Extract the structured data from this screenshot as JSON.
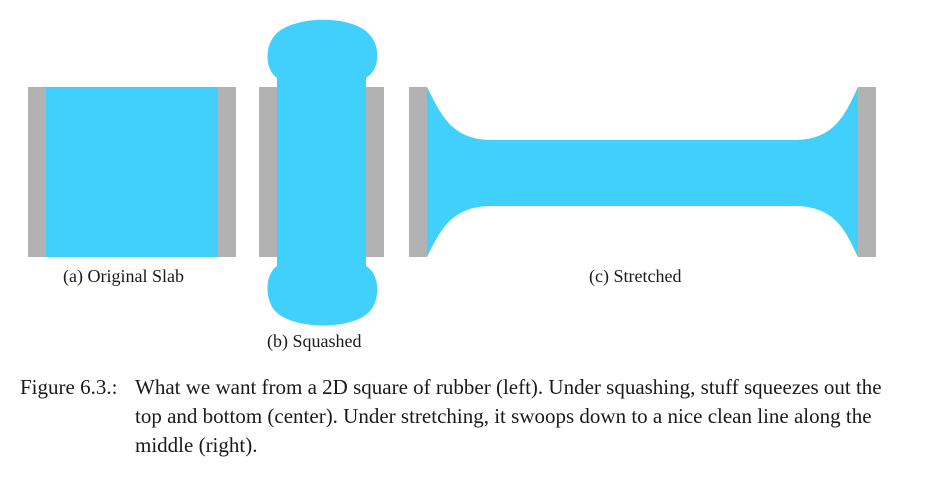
{
  "colors": {
    "rubber": "#41d0fc",
    "plate": "#b2b2b2",
    "background": "#ffffff"
  },
  "subfigures": {
    "a": {
      "caption": "(a) Original Slab"
    },
    "b": {
      "caption": "(b) Squashed"
    },
    "c": {
      "caption": "(c) Stretched"
    }
  },
  "figure": {
    "label": "Figure 6.3.:",
    "caption": "What we want from a 2D square of rubber (left). Under squashing, stuff squeezes out the top and bottom (center). Under stretching, it swoops down to a nice clean line along the middle (right)."
  }
}
